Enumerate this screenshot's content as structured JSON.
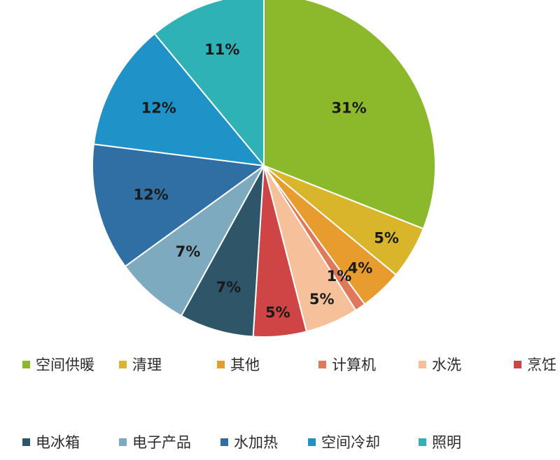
{
  "chart_data": {
    "type": "pie",
    "start_angle_deg": 0,
    "direction": "clockwise",
    "slices": [
      {
        "label": "空间供暖",
        "value": 31,
        "display": "31%",
        "color": "#8cb82b"
      },
      {
        "label": "清理",
        "value": 5,
        "display": "5%",
        "color": "#d9b52b"
      },
      {
        "label": "其他",
        "value": 4,
        "display": "4%",
        "color": "#e89c2e"
      },
      {
        "label": "计算机",
        "value": 1,
        "display": "1%",
        "color": "#e0785c"
      },
      {
        "label": "水洗",
        "value": 5,
        "display": "5%",
        "color": "#f6c19a"
      },
      {
        "label": "烹饪",
        "value": 5,
        "display": "5%",
        "color": "#cf4545"
      },
      {
        "label": "电冰箱",
        "value": 7,
        "display": "7%",
        "color": "#2f5568"
      },
      {
        "label": "电子产品",
        "value": 7,
        "display": "7%",
        "color": "#7eaac0"
      },
      {
        "label": "水加热",
        "value": 12,
        "display": "12%",
        "color": "#2f6fa3"
      },
      {
        "label": "空间冷却",
        "value": 12,
        "display": "12%",
        "color": "#1f92c8"
      },
      {
        "label": "照明",
        "value": 11,
        "display": "11%",
        "color": "#2eb2b5"
      }
    ],
    "legend_position": "bottom",
    "label_color": "#1a1a1a"
  }
}
